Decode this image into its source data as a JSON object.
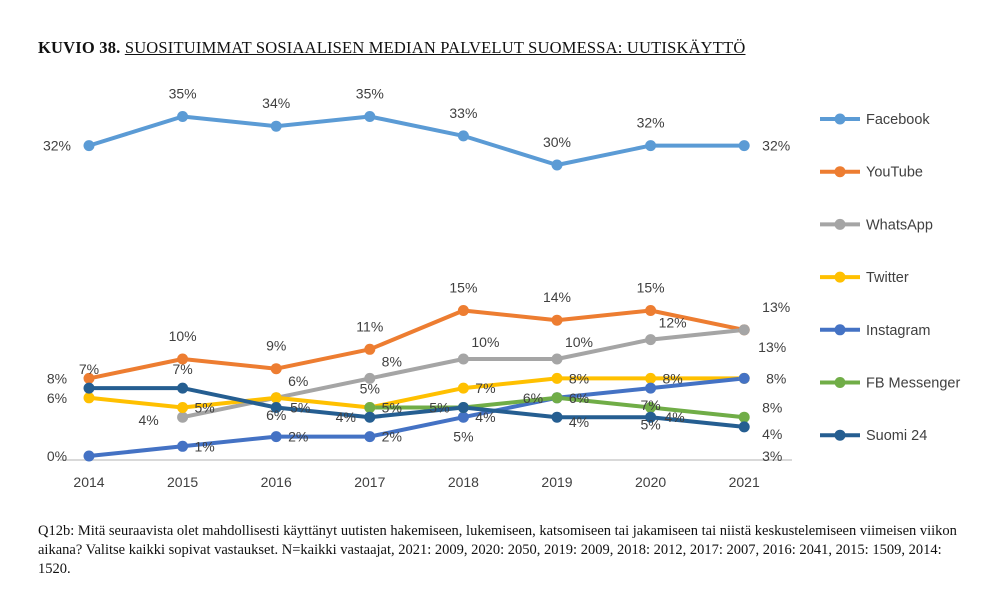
{
  "title": {
    "prefix": "KUVIO 38.",
    "text": "SUOSITUIMMAT SOSIAALISEN MEDIAN PALVELUT SUOMESSA: UUTISKÄYTTÖ"
  },
  "note": "Q12b: Mitä seuraavista olet mahdollisesti käyttänyt uutisten hakemiseen, lukemiseen, katsomiseen tai jakamiseen tai niistä keskustelemiseen viimeisen viikon aikana? Valitse kaikki sopivat vastaukset. N=kaikki vastaajat, 2021: 2009, 2020: 2050, 2019: 2009, 2018: 2012, 2017: 2007, 2016: 2041, 2015: 1509, 2014: 1520.",
  "chart_data": {
    "type": "line",
    "title": "SUOSITUIMMAT SOSIAALISEN MEDIAN PALVELUT SUOMESSA: UUTISKÄYTTÖ",
    "xlabel": "",
    "ylabel": "",
    "categories": [
      "2014",
      "2015",
      "2016",
      "2017",
      "2018",
      "2019",
      "2020",
      "2021"
    ],
    "ylim": [
      0,
      36
    ],
    "grid": false,
    "legend": "right",
    "series": [
      {
        "name": "Facebook",
        "color": "#5B9BD5",
        "values": [
          32,
          35,
          34,
          35,
          33,
          30,
          32,
          32
        ]
      },
      {
        "name": "YouTube",
        "color": "#ED7D31",
        "values": [
          8,
          10,
          9,
          11,
          15,
          14,
          15,
          13
        ]
      },
      {
        "name": "WhatsApp",
        "color": "#A5A5A5",
        "values": [
          null,
          4,
          6,
          8,
          10,
          10,
          12,
          13
        ]
      },
      {
        "name": "Twitter",
        "color": "#FFC000",
        "values": [
          6,
          5,
          6,
          5,
          7,
          8,
          8,
          8
        ]
      },
      {
        "name": "Instagram",
        "color": "#4472C4",
        "values": [
          0,
          1,
          2,
          2,
          4,
          6,
          7,
          8
        ]
      },
      {
        "name": "FB Messenger",
        "color": "#70AD47",
        "values": [
          null,
          null,
          null,
          5,
          5,
          6,
          5,
          4
        ]
      },
      {
        "name": "Suomi 24",
        "color": "#255E91",
        "values": [
          7,
          7,
          5,
          4,
          5,
          4,
          4,
          3
        ]
      }
    ]
  }
}
